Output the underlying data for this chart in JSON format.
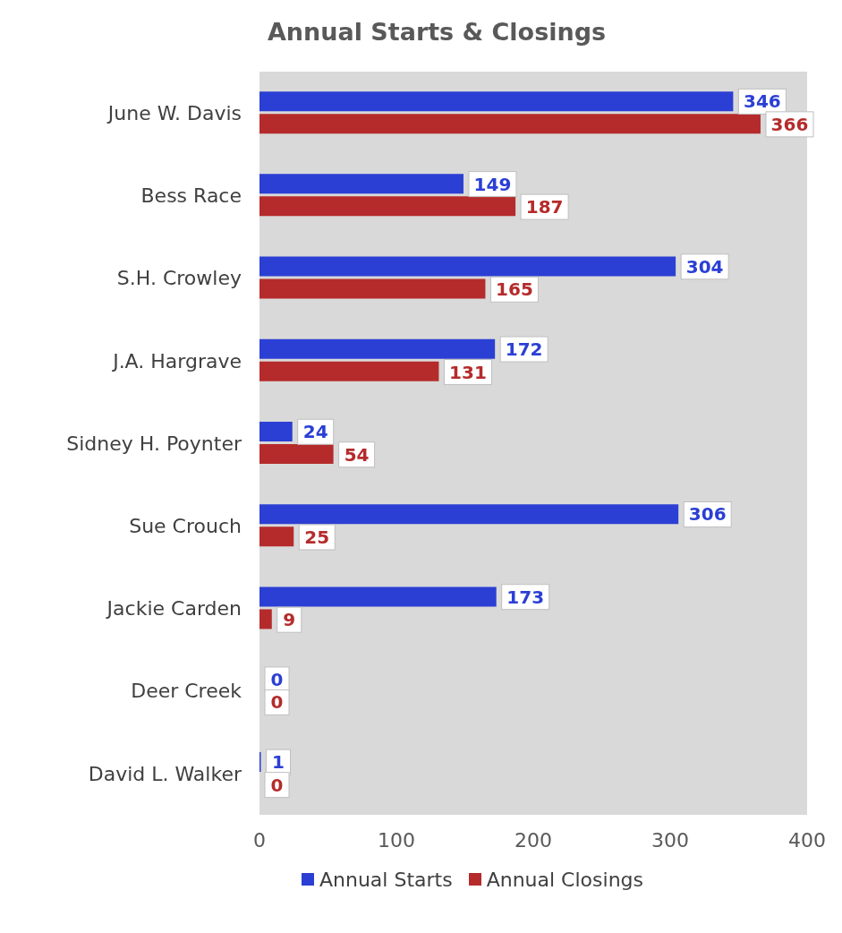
{
  "chart_data": {
    "type": "bar",
    "orientation": "horizontal",
    "title": "Annual Starts & Closings",
    "categories": [
      "June W. Davis",
      "Bess Race",
      "S.H. Crowley",
      "J.A. Hargrave",
      "Sidney H. Poynter",
      "Sue Crouch",
      "Jackie Carden",
      "Deer Creek",
      "David L. Walker"
    ],
    "series": [
      {
        "name": "Annual Starts",
        "color": "#2b3fd4",
        "values": [
          346,
          149,
          304,
          172,
          24,
          306,
          173,
          0,
          1
        ]
      },
      {
        "name": "Annual Closings",
        "color": "#b52b2b",
        "values": [
          366,
          187,
          165,
          131,
          54,
          25,
          9,
          0,
          0
        ]
      }
    ],
    "xlim": [
      0,
      400
    ],
    "xticks": [
      0,
      100,
      200,
      300,
      400
    ],
    "grid": false,
    "legend": "bottom",
    "data_labels": true
  }
}
